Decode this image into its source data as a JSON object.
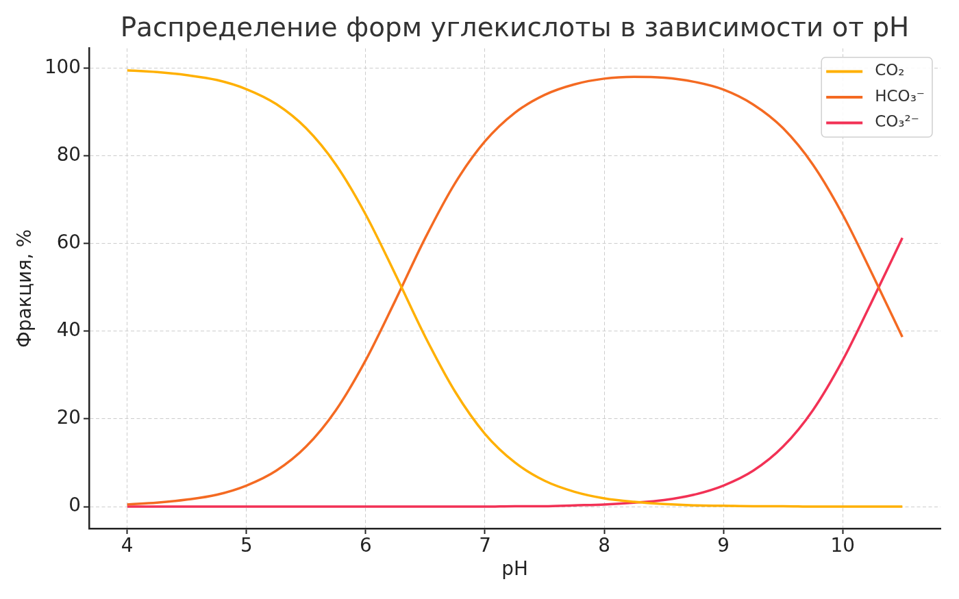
{
  "chart_data": {
    "type": "line",
    "title": "Распределение форм углекислоты в зависимости от pH",
    "xlabel": "pH",
    "ylabel": "Фракция, %",
    "x": [
      4,
      4.25,
      4.5,
      4.75,
      5,
      5.25,
      5.5,
      5.75,
      6,
      6.25,
      6.5,
      6.75,
      7,
      7.25,
      7.5,
      7.75,
      8,
      8.25,
      8.5,
      8.75,
      9,
      9.25,
      9.5,
      9.75,
      10,
      10.25,
      10.5
    ],
    "series": [
      {
        "name": "CO₂",
        "color": "#ffb000",
        "values": [
          99.5,
          99.1,
          98.4,
          97.3,
          95.2,
          91.8,
          86.3,
          78.0,
          66.6,
          52.9,
          38.7,
          26.2,
          16.6,
          10.1,
          5.9,
          3.4,
          1.9,
          1.1,
          0.6,
          0.3,
          0.2,
          0.1,
          0.1,
          0,
          0,
          0,
          0
        ]
      },
      {
        "name": "HCO₃⁻",
        "color": "#f46a22",
        "values": [
          0.5,
          0.9,
          1.6,
          2.7,
          4.8,
          8.2,
          13.7,
          22.0,
          33.4,
          47.1,
          61.3,
          73.8,
          83.3,
          89.8,
          93.9,
          96.3,
          97.6,
          98.0,
          97.8,
          96.9,
          95.1,
          91.7,
          86.3,
          78.0,
          66.6,
          52.9,
          38.7
        ]
      },
      {
        "name": "CO₃²⁻",
        "color": "#f23155",
        "values": [
          0,
          0,
          0,
          0,
          0,
          0,
          0,
          0,
          0,
          0,
          0,
          0,
          0,
          0.1,
          0.1,
          0.3,
          0.5,
          0.9,
          1.5,
          2.7,
          4.8,
          8.2,
          13.7,
          22.0,
          33.4,
          47.1,
          61.3
        ]
      }
    ],
    "xlim": [
      3.68,
      10.82
    ],
    "ylim": [
      -4.98,
      104.5
    ],
    "xticks": [
      4,
      5,
      6,
      7,
      8,
      9,
      10
    ],
    "yticks": [
      0,
      20,
      40,
      60,
      80,
      100
    ],
    "grid": true,
    "legend": "top right"
  }
}
